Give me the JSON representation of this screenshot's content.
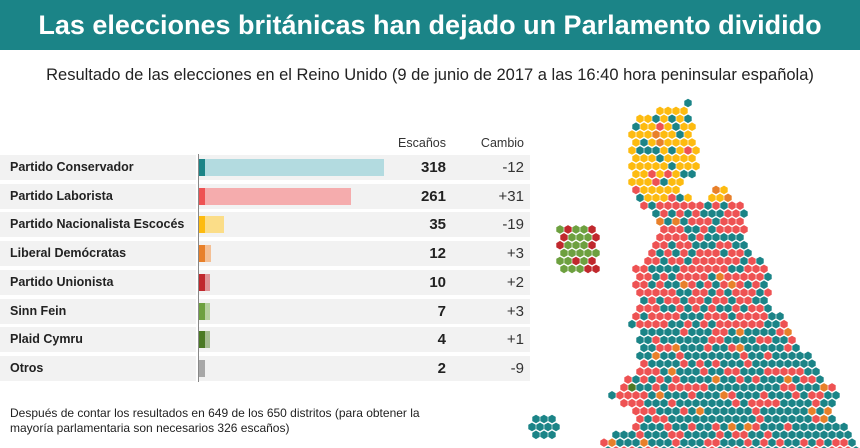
{
  "title": "Las elecciones británicas han dejado un Parlamento dividido",
  "subtitle": "Resultado de las elecciones en el Reino Unido (9 de junio de 2017 a las 16:40 hora peninsular española)",
  "footer": "Después de contar los resultados en 649 de los 650 distritos (para obtener la mayoría parlamentaria son necesarios 326 escaños)",
  "chart_data": {
    "type": "bar",
    "orientation": "horizontal",
    "columns": {
      "seats": "Escaños",
      "change": "Cambio"
    },
    "categories": [
      "Partido Conservador",
      "Partido Laborista",
      "Partido Nacionalista Escocés",
      "Liberal Demócratas",
      "Partido Unionista",
      "Sinn Fein",
      "Plaid Cymru",
      "Otros"
    ],
    "values": [
      318,
      261,
      35,
      12,
      10,
      7,
      4,
      2
    ],
    "change": [
      "-12",
      "+31",
      "-19",
      "+3",
      "+2",
      "+3",
      "+1",
      "-9"
    ],
    "colors": [
      "#1b8487",
      "#ee5253",
      "#fdbb10",
      "#e8802a",
      "#c0282d",
      "#6da03f",
      "#4b7a25",
      "#a8a8a8"
    ],
    "light_colors": [
      "#b3dbe0",
      "#f5acad",
      "#fbdd88",
      "#f4bf94",
      "#df9396",
      "#b6d09f",
      "#a5bc92",
      "#d3d3d3"
    ],
    "xlim": [
      0,
      318
    ]
  },
  "map": {
    "type": "hex cartogram",
    "party_colors": {
      "con": "#1b8487",
      "lab": "#ee5253",
      "snp": "#fdbb10",
      "ld": "#e8802a",
      "dup": "#c0282d",
      "sf": "#6da03f",
      "pc": "#4b7a25",
      "other": "#a8a8a8",
      "green": "#1a3fa8"
    }
  }
}
